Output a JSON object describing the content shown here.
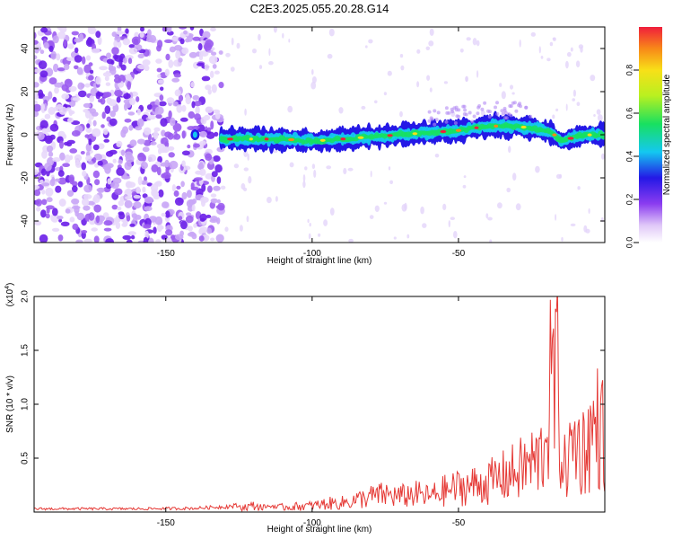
{
  "title": "C2E3.2025.055.20.28.G14",
  "colors": {
    "snr_line": "#e53935",
    "background": "#ffffff",
    "spectral_ridge_high": "#ff2020",
    "spectral_ridge_low": "#2b1bd6",
    "noise": "#8b3cf0"
  },
  "chart_data": [
    {
      "type": "heatmap",
      "title": "C2E3.2025.055.20.28.G14",
      "xlabel": "Height of straight line (km)",
      "ylabel": "Frequency (Hz)",
      "xlim": [
        -195,
        0
      ],
      "ylim": [
        -50,
        50
      ],
      "xticks": [
        -150,
        -100,
        -50
      ],
      "yticks": [
        -40,
        -20,
        0,
        20,
        40
      ],
      "colorbar": {
        "label": "Normalized spectral amplitude",
        "range": [
          0,
          1
        ],
        "ticks": [
          0,
          0.2,
          0.4,
          0.6,
          0.8
        ],
        "tick_labels": [
          "0.0",
          "0.2",
          "0.4",
          "0.6",
          "0.8"
        ],
        "colormap": "rainbow"
      },
      "ridge": {
        "x": [
          -131,
          -120,
          -110,
          -100,
          -90,
          -80,
          -70,
          -60,
          -50,
          -40,
          -30,
          -25,
          -18,
          -15,
          -10,
          -5,
          0
        ],
        "y": [
          -2,
          -2,
          -2,
          -3,
          -2,
          -1,
          0,
          1,
          2,
          4,
          4,
          3,
          1,
          -3,
          -1,
          0,
          0
        ]
      },
      "noise_region_x": [
        -195,
        -131
      ],
      "grid": false
    },
    {
      "type": "line",
      "xlabel": "Height of straight line (km)",
      "ylabel": "SNR (10 * v/v)",
      "y_multiplier_label": "(x10",
      "y_multiplier_exp": "4",
      "ylim": [
        0,
        2.0
      ],
      "xlim": [
        -195,
        0
      ],
      "xticks": [
        -150,
        -100,
        -50
      ],
      "yticks": [
        0.5,
        1.0,
        1.5,
        2.0
      ],
      "ytick_labels": [
        "0.5",
        "1.0",
        "1.5",
        "2.0"
      ],
      "series": [
        {
          "x": [
            -195,
            -180,
            -160,
            -140,
            -130,
            -125,
            -120,
            -115,
            -110,
            -100,
            -95,
            -90,
            -85,
            -80,
            -75,
            -70,
            -65,
            -60,
            -55,
            -50,
            -45,
            -40,
            -35,
            -30,
            -25,
            -22,
            -20,
            -18,
            -17,
            -16,
            -15,
            -14,
            -12,
            -10,
            -8,
            -6,
            -4,
            -2,
            0
          ],
          "values": [
            0.03,
            0.03,
            0.03,
            0.035,
            0.05,
            0.06,
            0.09,
            0.05,
            0.07,
            0.09,
            0.12,
            0.13,
            0.17,
            0.22,
            0.25,
            0.22,
            0.26,
            0.22,
            0.3,
            0.35,
            0.38,
            0.42,
            0.5,
            0.58,
            0.7,
            0.75,
            1.2,
            1.95,
            1.75,
            2.0,
            0.9,
            0.6,
            0.8,
            1.05,
            0.85,
            1.0,
            1.15,
            1.25,
            1.05
          ]
        }
      ],
      "grid": false
    }
  ]
}
